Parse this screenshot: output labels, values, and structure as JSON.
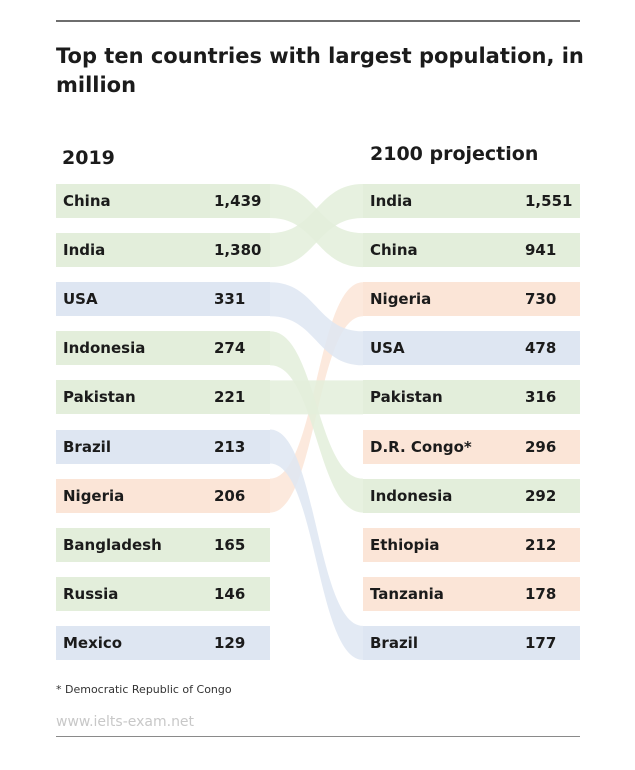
{
  "chart_data": {
    "type": "table",
    "title": "Top ten countries with largest population, in million",
    "left_header": "2019",
    "right_header": "2100 projection",
    "left": [
      {
        "country": "China",
        "value": "1,439",
        "group": "asia"
      },
      {
        "country": "India",
        "value": "1,380",
        "group": "asia"
      },
      {
        "country": "USA",
        "value": "331",
        "group": "america"
      },
      {
        "country": "Indonesia",
        "value": "274",
        "group": "asia"
      },
      {
        "country": "Pakistan",
        "value": "221",
        "group": "asia"
      },
      {
        "country": "Brazil",
        "value": "213",
        "group": "america"
      },
      {
        "country": "Nigeria",
        "value": "206",
        "group": "africa"
      },
      {
        "country": "Bangladesh",
        "value": "165",
        "group": "asia"
      },
      {
        "country": "Russia",
        "value": "146",
        "group": "asia"
      },
      {
        "country": "Mexico",
        "value": "129",
        "group": "america"
      }
    ],
    "right": [
      {
        "country": "India",
        "value": "1,551",
        "group": "asia"
      },
      {
        "country": "China",
        "value": "941",
        "group": "asia"
      },
      {
        "country": "Nigeria",
        "value": "730",
        "group": "africa"
      },
      {
        "country": "USA",
        "value": "478",
        "group": "america"
      },
      {
        "country": "Pakistan",
        "value": "316",
        "group": "asia"
      },
      {
        "country": "D.R. Congo*",
        "value": "296",
        "group": "africa"
      },
      {
        "country": "Indonesia",
        "value": "292",
        "group": "asia"
      },
      {
        "country": "Ethiopia",
        "value": "212",
        "group": "africa"
      },
      {
        "country": "Tanzania",
        "value": "178",
        "group": "africa"
      },
      {
        "country": "Brazil",
        "value": "177",
        "group": "america"
      }
    ],
    "links": [
      {
        "from": 0,
        "to": 1
      },
      {
        "from": 1,
        "to": 0
      },
      {
        "from": 2,
        "to": 3
      },
      {
        "from": 3,
        "to": 6
      },
      {
        "from": 4,
        "to": 4
      },
      {
        "from": 5,
        "to": 9
      },
      {
        "from": 6,
        "to": 2
      }
    ],
    "colors": {
      "asia": "#e3eedb",
      "america": "#dee6f2",
      "africa": "#fbe5d7"
    }
  },
  "footnote": "* Democratic Republic of Congo",
  "source": "www.ielts-exam.net"
}
